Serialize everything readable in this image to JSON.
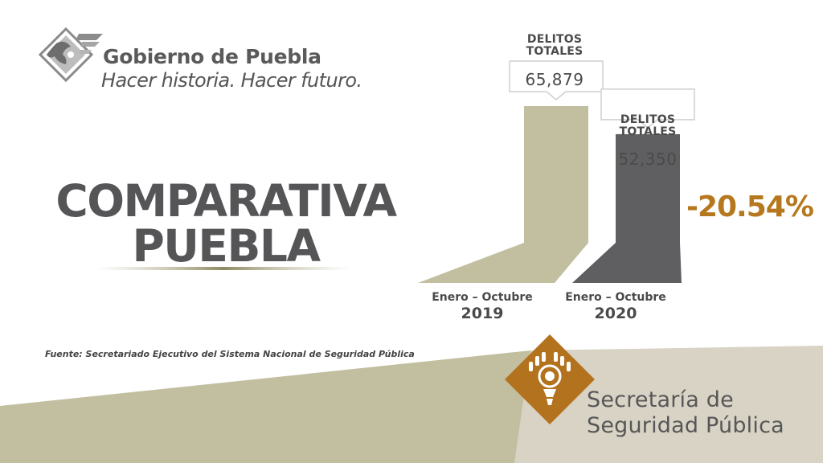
{
  "header": {
    "government_name": "Gobierno de Puebla",
    "slogan": "Hacer historia. Hacer futuro."
  },
  "title": {
    "line1": "COMPARATIVA",
    "line2": "PUEBLA"
  },
  "chart_data": {
    "type": "bar",
    "title": "COMPARATIVA PUEBLA",
    "categories": [
      "Enero – Octubre 2019",
      "Enero – Octubre 2020"
    ],
    "series": [
      {
        "name": "DELITOS TOTALES",
        "values": [
          65879,
          52350
        ]
      }
    ],
    "bars": [
      {
        "label": "DELITOS TOTALES",
        "value_text": "65,879",
        "period": "Enero – Octubre",
        "year": "2019",
        "color": "#c2bfa0"
      },
      {
        "label": "DELITOS TOTALES",
        "value_text": "52,350",
        "period": "Enero – Octubre",
        "year": "2020",
        "color": "#5f5f62"
      }
    ],
    "change_annotation": "-20.54%",
    "xlabel": "",
    "ylabel": ""
  },
  "footer": {
    "source": "Fuente: Secretariado Ejecutivo del Sistema Nacional de Seguridad Pública",
    "agency_line1": "Secretaría de",
    "agency_line2": "Seguridad Pública"
  },
  "colors": {
    "khaki": "#c2bfa0",
    "dark_gray": "#5f5f62",
    "accent": "#b6781e",
    "beige": "#d8d3c5"
  }
}
